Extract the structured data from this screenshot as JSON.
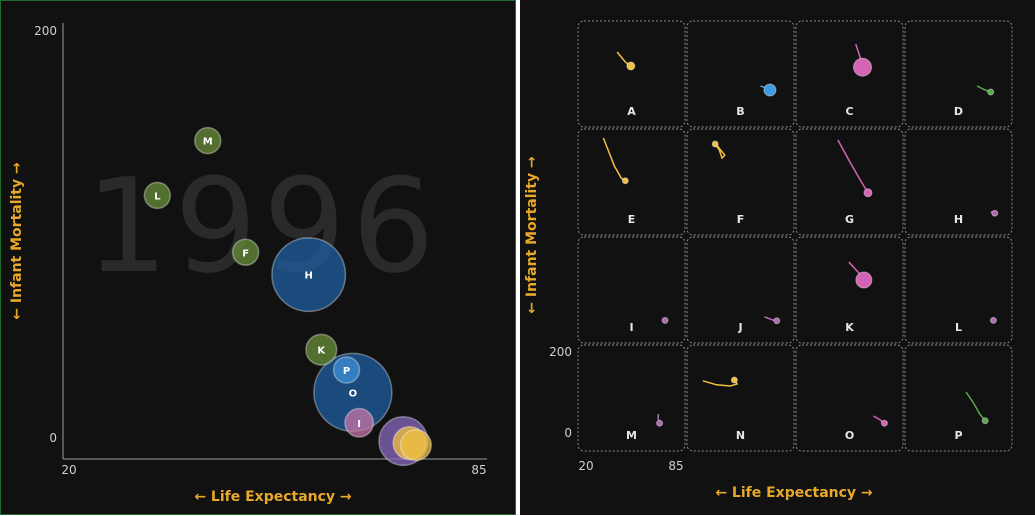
{
  "chart_data": [
    {
      "type": "scatter",
      "title": "",
      "year_label": "1996",
      "xlabel": "← Life Expectancy →",
      "ylabel": "← Infant Mortality →",
      "xlim": [
        20,
        85
      ],
      "ylim": [
        0,
        200
      ],
      "x_ticks": [
        "20",
        "85"
      ],
      "y_ticks": [
        "0",
        "200"
      ],
      "points": [
        {
          "label": "M",
          "x": 42,
          "y": 146,
          "size": 1,
          "color": "#6a8f3a"
        },
        {
          "label": "L",
          "x": 34,
          "y": 119,
          "size": 1,
          "color": "#6a8f3a"
        },
        {
          "label": "F",
          "x": 48,
          "y": 91,
          "size": 1,
          "color": "#6a8f3a"
        },
        {
          "label": "H",
          "x": 58,
          "y": 80,
          "size": 8,
          "color": "#1e5fa0"
        },
        {
          "label": "K",
          "x": 60,
          "y": 43,
          "size": 1.4,
          "color": "#6a8f3a"
        },
        {
          "label": "P",
          "x": 64,
          "y": 33,
          "size": 1,
          "color": "#3f8fd8"
        },
        {
          "label": "O",
          "x": 65,
          "y": 22,
          "size": 9,
          "color": "#1e5fa0"
        },
        {
          "label": "I",
          "x": 66,
          "y": 7,
          "size": 1.2,
          "color": "#c874a8"
        },
        {
          "label": "",
          "x": 73,
          "y": -2,
          "size": 3.5,
          "color": "#8a6abf"
        },
        {
          "label": "",
          "x": 74,
          "y": -3,
          "size": 1.6,
          "color": "#f0c040"
        },
        {
          "label": "",
          "x": 75,
          "y": -4,
          "size": 1.4,
          "color": "#f0c040"
        }
      ]
    },
    {
      "type": "scatter",
      "title": "",
      "xlabel": "← Life Expectancy →",
      "ylabel": "← Infant Mortality →",
      "xlim": [
        20,
        85
      ],
      "ylim": [
        0,
        200
      ],
      "x_ticks": [
        "20",
        "85"
      ],
      "y_ticks": [
        "0",
        "200"
      ],
      "panels": [
        {
          "label": "A",
          "color": "#f0c040",
          "size": 4,
          "trail": [
            [
              42,
              140
            ],
            [
              48,
              115
            ],
            [
              52,
              105
            ]
          ]
        },
        {
          "label": "B",
          "color": "#3f9ae0",
          "size": 6,
          "trail": [
            [
              67,
              55
            ],
            [
              71,
              50
            ],
            [
              74,
              45
            ]
          ]
        },
        {
          "label": "C",
          "color": "#d463b4",
          "size": 9,
          "trail": [
            [
              57,
              160
            ],
            [
              61,
              120
            ],
            [
              62,
              102
            ]
          ]
        },
        {
          "label": "D",
          "color": "#5aa84a",
          "size": 3,
          "trail": [
            [
              66,
              55
            ],
            [
              72,
              45
            ],
            [
              76,
              40
            ]
          ]
        },
        {
          "label": "E",
          "color": "#f0c040",
          "size": 3,
          "trail": [
            [
              32,
              195
            ],
            [
              36,
              160
            ],
            [
              40,
              125
            ],
            [
              45,
              95
            ],
            [
              48,
              88
            ]
          ]
        },
        {
          "label": "F",
          "color": "#f0c040",
          "size": 3,
          "trail": [
            [
              35,
              178
            ],
            [
              38,
              165
            ],
            [
              41,
              152
            ],
            [
              39,
              145
            ],
            [
              37,
              165
            ],
            [
              34,
              180
            ]
          ]
        },
        {
          "label": "G",
          "color": "#d463b4",
          "size": 4,
          "trail": [
            [
              44,
              190
            ],
            [
              52,
              140
            ],
            [
              60,
              92
            ],
            [
              66,
              58
            ]
          ]
        },
        {
          "label": "H",
          "color": "#b06ab0",
          "size": 3,
          "trail": [
            [
              76,
              10
            ],
            [
              79,
              7
            ]
          ]
        },
        {
          "label": "I",
          "color": "#b06ab0",
          "size": 3,
          "trail": [
            [
              77,
              9
            ]
          ]
        },
        {
          "label": "J",
          "color": "#b06ab0",
          "size": 3,
          "trail": [
            [
              70,
              18
            ],
            [
              76,
              10
            ],
            [
              79,
              8
            ]
          ]
        },
        {
          "label": "K",
          "color": "#d463b4",
          "size": 8,
          "trail": [
            [
              52,
              155
            ],
            [
              60,
              125
            ],
            [
              63,
              110
            ]
          ]
        },
        {
          "label": "L",
          "color": "#b06ab0",
          "size": 3,
          "trail": [
            [
              76,
              10
            ],
            [
              78,
              9
            ]
          ]
        },
        {
          "label": "M",
          "color": "#b06ab0",
          "size": 3,
          "trail": [
            [
              72,
              45
            ],
            [
              72,
              32
            ],
            [
              73,
              22
            ]
          ]
        },
        {
          "label": "N",
          "color": "#f0c040",
          "size": 3,
          "trail": [
            [
              25,
              128
            ],
            [
              35,
              118
            ],
            [
              45,
              115
            ],
            [
              50,
              120
            ],
            [
              48,
              130
            ]
          ]
        },
        {
          "label": "O",
          "color": "#d463b4",
          "size": 3,
          "trail": [
            [
              70,
              40
            ],
            [
              75,
              30
            ],
            [
              78,
              22
            ]
          ]
        },
        {
          "label": "P",
          "color": "#5aa84a",
          "size": 3,
          "trail": [
            [
              58,
              100
            ],
            [
              64,
              70
            ],
            [
              68,
              45
            ],
            [
              72,
              28
            ]
          ]
        }
      ]
    }
  ]
}
